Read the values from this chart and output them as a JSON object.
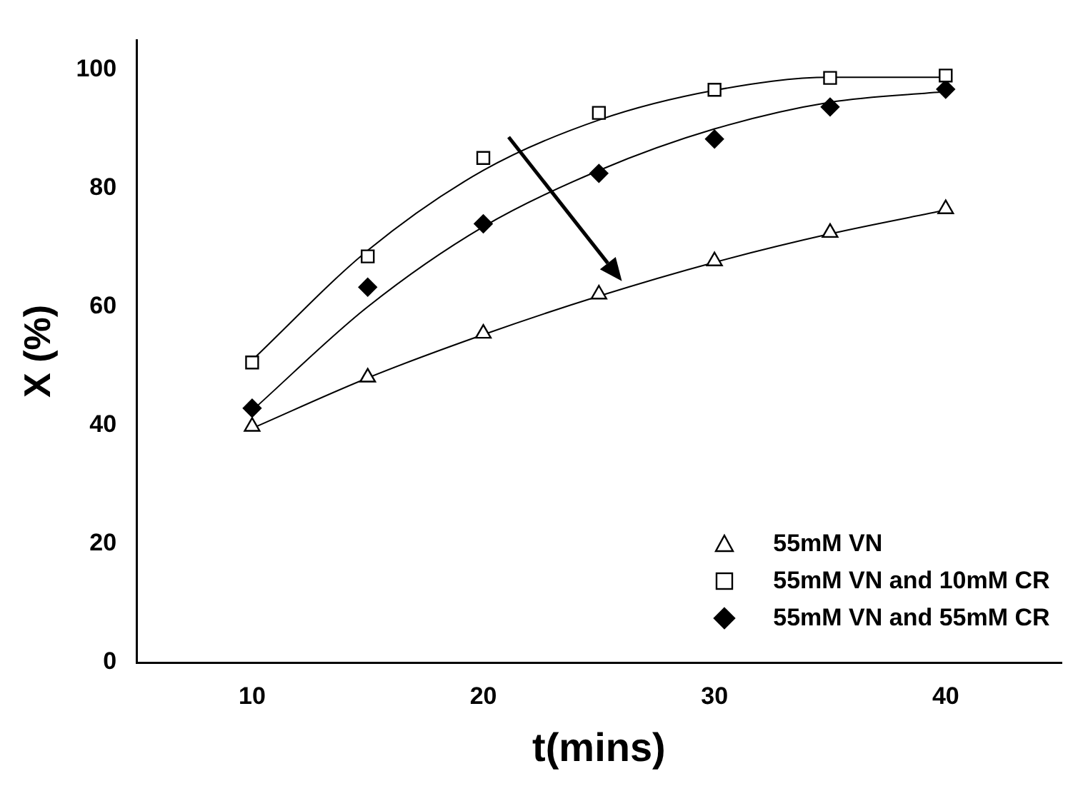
{
  "chart_data": {
    "type": "scatter",
    "xlabel": "t(mins)",
    "ylabel": "X (%)",
    "xlim": [
      5,
      45
    ],
    "xticks": [
      10,
      20,
      30,
      40
    ],
    "ylim": [
      0,
      105
    ],
    "yticks": [
      0,
      20,
      40,
      60,
      80,
      100
    ],
    "grid": false,
    "legend": "bottom right",
    "series": [
      {
        "name": "55mM VN",
        "marker": "triangle",
        "color": "#000000",
        "x": [
          10,
          15,
          20,
          25,
          30,
          35,
          40
        ],
        "values": [
          39.8,
          48.1,
          55.5,
          62.1,
          67.7,
          72.5,
          76.5
        ]
      },
      {
        "name": "55mM VN and 10mM CR",
        "marker": "square",
        "color": "#000000",
        "x": [
          10,
          15,
          20,
          25,
          30,
          35,
          40
        ],
        "values": [
          50.6,
          68.5,
          85.1,
          92.7,
          96.6,
          98.6,
          99
        ]
      },
      {
        "name": "55mM VN and 55mM CR",
        "marker": "diamond",
        "color": "#000000",
        "x": [
          10,
          15,
          20,
          25,
          30,
          35,
          40
        ],
        "values": [
          42.9,
          63.3,
          74,
          82.5,
          88.3,
          93.7,
          96.7
        ]
      },
      {
        "type": "line",
        "marker": "none",
        "color": "#000000",
        "x": [
          10,
          15,
          20,
          25,
          30,
          35,
          40
        ],
        "values": [
          39.5,
          48,
          55.3,
          61.8,
          67.5,
          72.3,
          76.3
        ]
      },
      {
        "type": "line",
        "marker": "none",
        "color": "#000000",
        "x": [
          10,
          15,
          20,
          25,
          30,
          35,
          40
        ],
        "values": [
          51,
          69.5,
          83,
          91.5,
          96.5,
          98.7,
          98.7
        ]
      },
      {
        "type": "line",
        "marker": "none",
        "color": "#000000",
        "x": [
          10,
          15,
          20,
          25,
          30,
          35,
          40
        ],
        "values": [
          42.5,
          60,
          73.5,
          83,
          90,
          94.5,
          96.3
        ]
      }
    ]
  }
}
